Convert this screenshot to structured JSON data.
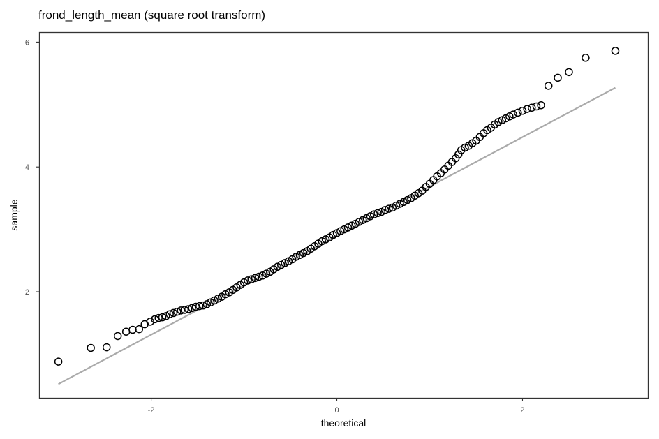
{
  "chart_data": {
    "type": "scatter",
    "title": "frond_length_mean (square root transform)",
    "xlabel": "theoretical",
    "ylabel": "sample",
    "xlim": [
      -3.2,
      3.35
    ],
    "ylim": [
      0.3,
      6.15
    ],
    "x_ticks": [
      -2,
      0,
      2
    ],
    "y_ticks": [
      2,
      4,
      6
    ],
    "grid": false,
    "point_style": "open circle",
    "reference_line": {
      "x": [
        -3.0,
        3.0
      ],
      "y": [
        0.52,
        5.27
      ],
      "color": "#aaaaaa"
    },
    "points": [
      [
        -3.0,
        0.88
      ],
      [
        -2.65,
        1.1
      ],
      [
        -2.48,
        1.11
      ],
      [
        -2.36,
        1.29
      ],
      [
        -2.27,
        1.36
      ],
      [
        -2.2,
        1.39
      ],
      [
        -2.13,
        1.4
      ],
      [
        -2.07,
        1.48
      ],
      [
        -2.01,
        1.52
      ],
      [
        -1.96,
        1.56
      ],
      [
        -1.92,
        1.58
      ],
      [
        -1.88,
        1.59
      ],
      [
        -1.84,
        1.61
      ],
      [
        -1.8,
        1.64
      ],
      [
        -1.76,
        1.66
      ],
      [
        -1.72,
        1.68
      ],
      [
        -1.68,
        1.7
      ],
      [
        -1.64,
        1.71
      ],
      [
        -1.6,
        1.72
      ],
      [
        -1.56,
        1.74
      ],
      [
        -1.52,
        1.76
      ],
      [
        -1.48,
        1.77
      ],
      [
        -1.44,
        1.78
      ],
      [
        -1.4,
        1.8
      ],
      [
        -1.36,
        1.83
      ],
      [
        -1.32,
        1.86
      ],
      [
        -1.28,
        1.89
      ],
      [
        -1.24,
        1.92
      ],
      [
        -1.2,
        1.96
      ],
      [
        -1.16,
        1.99
      ],
      [
        -1.12,
        2.03
      ],
      [
        -1.08,
        2.07
      ],
      [
        -1.04,
        2.11
      ],
      [
        -1.0,
        2.15
      ],
      [
        -0.96,
        2.18
      ],
      [
        -0.92,
        2.2
      ],
      [
        -0.88,
        2.22
      ],
      [
        -0.84,
        2.24
      ],
      [
        -0.8,
        2.26
      ],
      [
        -0.76,
        2.29
      ],
      [
        -0.72,
        2.32
      ],
      [
        -0.68,
        2.36
      ],
      [
        -0.64,
        2.4
      ],
      [
        -0.6,
        2.43
      ],
      [
        -0.56,
        2.46
      ],
      [
        -0.52,
        2.49
      ],
      [
        -0.48,
        2.52
      ],
      [
        -0.44,
        2.56
      ],
      [
        -0.4,
        2.59
      ],
      [
        -0.36,
        2.62
      ],
      [
        -0.32,
        2.65
      ],
      [
        -0.28,
        2.69
      ],
      [
        -0.24,
        2.73
      ],
      [
        -0.2,
        2.77
      ],
      [
        -0.16,
        2.81
      ],
      [
        -0.12,
        2.84
      ],
      [
        -0.08,
        2.87
      ],
      [
        -0.04,
        2.91
      ],
      [
        0.0,
        2.94
      ],
      [
        0.04,
        2.97
      ],
      [
        0.08,
        3.0
      ],
      [
        0.12,
        3.03
      ],
      [
        0.16,
        3.06
      ],
      [
        0.2,
        3.09
      ],
      [
        0.24,
        3.12
      ],
      [
        0.28,
        3.15
      ],
      [
        0.32,
        3.18
      ],
      [
        0.36,
        3.21
      ],
      [
        0.4,
        3.24
      ],
      [
        0.44,
        3.26
      ],
      [
        0.48,
        3.28
      ],
      [
        0.52,
        3.31
      ],
      [
        0.56,
        3.33
      ],
      [
        0.6,
        3.35
      ],
      [
        0.64,
        3.38
      ],
      [
        0.68,
        3.41
      ],
      [
        0.72,
        3.44
      ],
      [
        0.76,
        3.47
      ],
      [
        0.8,
        3.5
      ],
      [
        0.84,
        3.54
      ],
      [
        0.88,
        3.58
      ],
      [
        0.92,
        3.62
      ],
      [
        0.96,
        3.68
      ],
      [
        1.0,
        3.73
      ],
      [
        1.04,
        3.79
      ],
      [
        1.08,
        3.85
      ],
      [
        1.12,
        3.9
      ],
      [
        1.16,
        3.96
      ],
      [
        1.2,
        4.02
      ],
      [
        1.24,
        4.08
      ],
      [
        1.28,
        4.14
      ],
      [
        1.31,
        4.2
      ],
      [
        1.34,
        4.27
      ],
      [
        1.38,
        4.31
      ],
      [
        1.42,
        4.34
      ],
      [
        1.46,
        4.38
      ],
      [
        1.5,
        4.42
      ],
      [
        1.54,
        4.48
      ],
      [
        1.58,
        4.54
      ],
      [
        1.62,
        4.59
      ],
      [
        1.66,
        4.63
      ],
      [
        1.7,
        4.68
      ],
      [
        1.74,
        4.72
      ],
      [
        1.78,
        4.75
      ],
      [
        1.82,
        4.78
      ],
      [
        1.86,
        4.81
      ],
      [
        1.9,
        4.84
      ],
      [
        1.95,
        4.87
      ],
      [
        2.0,
        4.9
      ],
      [
        2.05,
        4.93
      ],
      [
        2.1,
        4.95
      ],
      [
        2.15,
        4.97
      ],
      [
        2.2,
        4.99
      ],
      [
        2.28,
        5.3
      ],
      [
        2.38,
        5.43
      ],
      [
        2.5,
        5.52
      ],
      [
        2.68,
        5.75
      ],
      [
        3.0,
        5.86
      ]
    ]
  }
}
